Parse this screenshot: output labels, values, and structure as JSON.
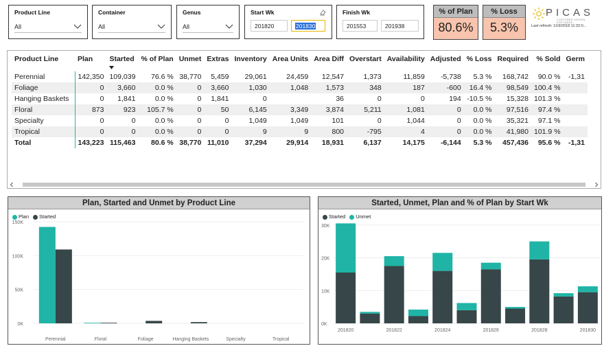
{
  "colors": {
    "teal": "#1fb4a6",
    "dark": "#374649",
    "kpi_bg": "#f8c4ad",
    "header_bg": "#bdbdbd"
  },
  "slicers": {
    "product_line": {
      "title": "Product Line",
      "value": "All"
    },
    "container": {
      "title": "Container",
      "value": "All"
    },
    "genus": {
      "title": "Genus",
      "value": "All"
    },
    "start_wk": {
      "title": "Start Wk",
      "from": "201820",
      "to": "201830"
    },
    "finish_wk": {
      "title": "Finish Wk",
      "from": "201553",
      "to": "201938"
    }
  },
  "kpis": {
    "pct_plan": {
      "title": "% of Plan",
      "value": "80.6%"
    },
    "pct_loss": {
      "title": "% Loss",
      "value": "5.3%"
    }
  },
  "logo": {
    "name": "PICAS",
    "tagline": "CUSTOMER DRIVEN SOFTWARE",
    "refresh": "Last refresh: 11/9/2018 11:32:0..."
  },
  "table": {
    "columns": [
      "Product Line",
      "Plan",
      "Started",
      "% of Plan",
      "Unmet",
      "Extras",
      "Inventory",
      "Area Units",
      "Area Diff",
      "Overstart",
      "Availability",
      "Adjusted",
      "% Loss",
      "Required",
      "% Sold",
      "Germ"
    ],
    "rows": [
      [
        "Perennial",
        "142,350",
        "109,039",
        "76.6 %",
        "38,770",
        "5,459",
        "29,061",
        "24,459",
        "12,547",
        "1,373",
        "11,859",
        "-5,738",
        "5.3 %",
        "168,742",
        "90.0 %",
        "-1,31"
      ],
      [
        "Foliage",
        "0",
        "3,660",
        "0.0 %",
        "0",
        "3,660",
        "1,030",
        "1,048",
        "1,573",
        "348",
        "187",
        "-600",
        "16.4 %",
        "98,549",
        "100.4 %",
        ""
      ],
      [
        "Hanging Baskets",
        "0",
        "1,841",
        "0.0 %",
        "0",
        "1,841",
        "0",
        "",
        "36",
        "0",
        "0",
        "194",
        "-10.5 %",
        "15,328",
        "101.3 %",
        ""
      ],
      [
        "Floral",
        "873",
        "923",
        "105.7 %",
        "0",
        "50",
        "6,145",
        "3,349",
        "3,874",
        "5,211",
        "1,081",
        "0",
        "0.0 %",
        "97,516",
        "97.4 %",
        ""
      ],
      [
        "Specialty",
        "0",
        "0",
        "0.0 %",
        "0",
        "0",
        "1,049",
        "1,049",
        "101",
        "0",
        "1,044",
        "0",
        "0.0 %",
        "35,321",
        "97.1 %",
        ""
      ],
      [
        "Tropical",
        "0",
        "0",
        "0.0 %",
        "0",
        "0",
        "9",
        "9",
        "800",
        "-795",
        "4",
        "0",
        "0.0 %",
        "41,980",
        "101.9 %",
        ""
      ]
    ],
    "total": [
      "Total",
      "143,223",
      "115,463",
      "80.6 %",
      "38,770",
      "11,010",
      "37,294",
      "29,914",
      "18,931",
      "6,137",
      "14,175",
      "-6,144",
      "5.3 %",
      "457,436",
      "95.6 %",
      "-1,31"
    ]
  },
  "chart_data": [
    {
      "type": "bar",
      "title": "Plan, Started and Unmet by Product Line",
      "categories": [
        "Perennial",
        "Floral",
        "Foliage",
        "Hanging Baskets",
        "Specialty",
        "Tropical"
      ],
      "series": [
        {
          "name": "Plan",
          "color": "#1fb4a6",
          "values": [
            142350,
            873,
            0,
            0,
            0,
            0
          ]
        },
        {
          "name": "Started",
          "color": "#374649",
          "values": [
            109039,
            923,
            3660,
            1841,
            0,
            0
          ]
        }
      ],
      "ylim": [
        0,
        150000
      ],
      "yticks": [
        "0K",
        "50K",
        "100K",
        "150K"
      ],
      "ytick_values": [
        0,
        50000,
        100000,
        150000
      ],
      "legend": "top-left"
    },
    {
      "type": "bar",
      "stacked": true,
      "title": "Started, Unmet, Plan and % of Plan by Start Wk",
      "categories": [
        "201820",
        "201821",
        "201822",
        "201823",
        "201824",
        "201825",
        "201826",
        "201827",
        "201828",
        "201829",
        "201830"
      ],
      "xtick_labels": [
        "201820",
        "",
        "201822",
        "",
        "201824",
        "",
        "201826",
        "",
        "201828",
        "",
        "201830"
      ],
      "series": [
        {
          "name": "Started",
          "color": "#374649",
          "values": [
            15500,
            3000,
            17500,
            2200,
            16000,
            4000,
            16500,
            4500,
            19500,
            8200,
            9500
          ]
        },
        {
          "name": "Unmet",
          "color": "#1fb4a6",
          "values": [
            15000,
            500,
            3000,
            2000,
            5500,
            2200,
            2000,
            500,
            5500,
            1000,
            1800
          ]
        }
      ],
      "ylim": [
        0,
        31000
      ],
      "yticks": [
        "0K",
        "10K",
        "20K",
        "30K"
      ],
      "ytick_values": [
        0,
        10000,
        20000,
        30000
      ],
      "legend": "top-left"
    }
  ]
}
